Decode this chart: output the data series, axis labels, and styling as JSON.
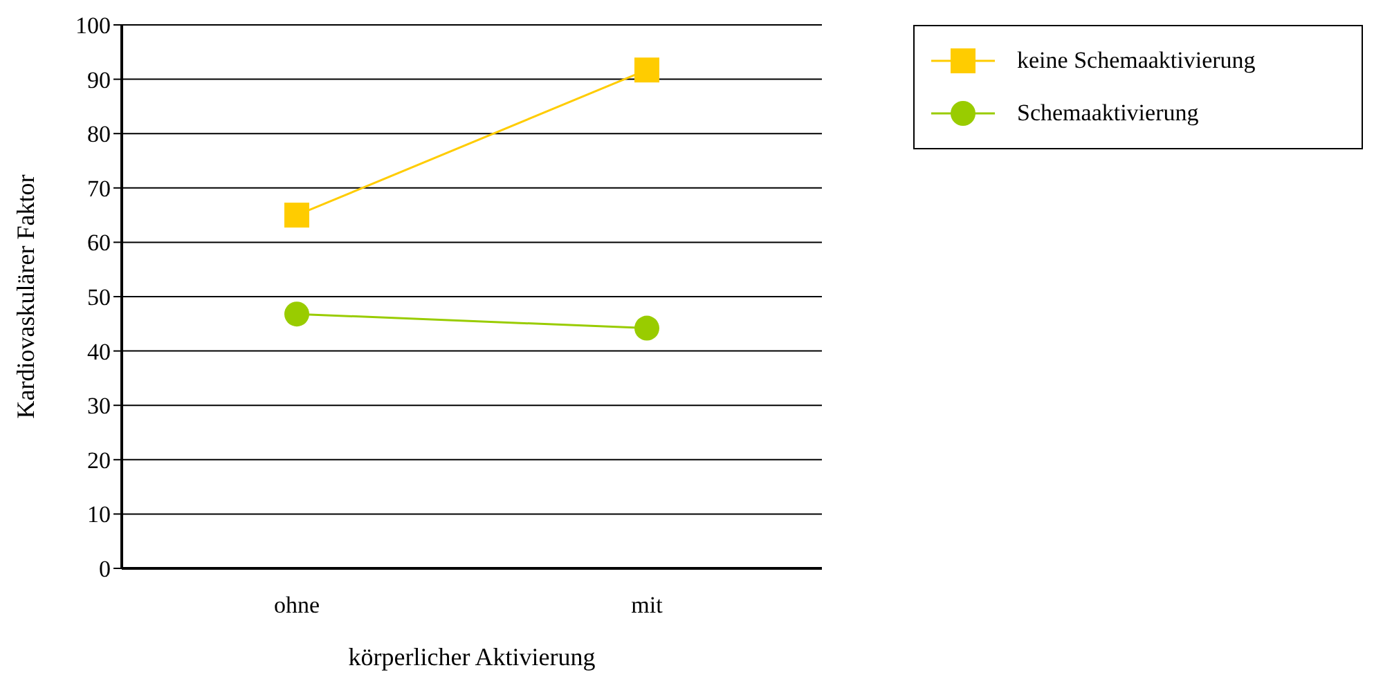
{
  "chart_data": {
    "type": "line",
    "xlabel": "körperlicher Aktivierung",
    "ylabel": "Kardiovaskulärer Faktor",
    "categories": [
      "ohne",
      "mit"
    ],
    "series": [
      {
        "name": "keine Schemaaktivierung",
        "color": "#ffcc00",
        "marker": "square",
        "values": [
          65,
          91.7
        ]
      },
      {
        "name": "Schemaaktivierung",
        "color": "#99cc00",
        "marker": "circle",
        "values": [
          46.8,
          44.2
        ]
      }
    ],
    "ylim": [
      0,
      100
    ],
    "yticks": [
      0,
      10,
      20,
      30,
      40,
      50,
      60,
      70,
      80,
      90,
      100
    ],
    "grid": "y",
    "legend": "top right",
    "line_style": "solid"
  }
}
